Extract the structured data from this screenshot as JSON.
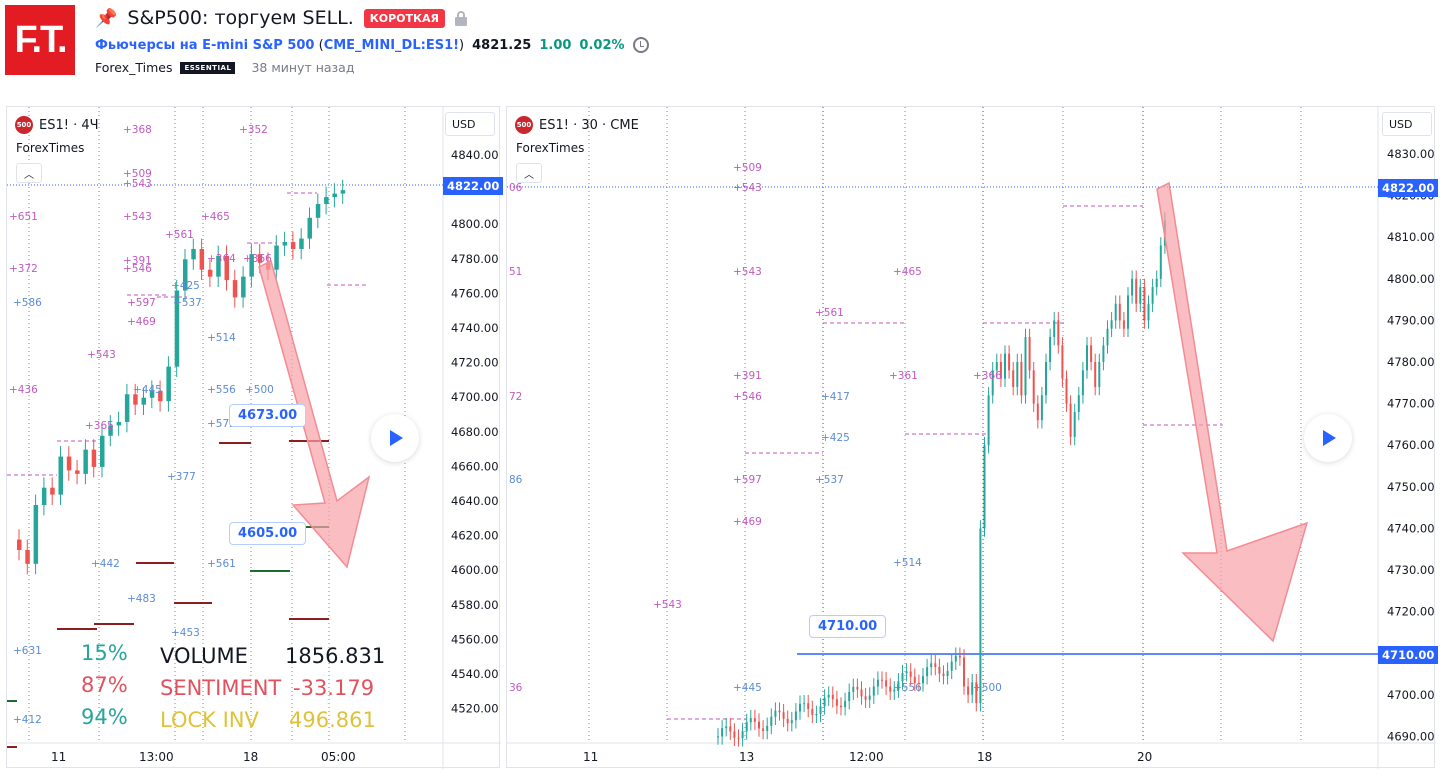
{
  "header": {
    "logo_text": "F.T.",
    "title": "S&P500: торгуем SELL.",
    "badge": "КОРОТКАЯ",
    "symbol_name": "Фьючерсы на E-mini S&P 500",
    "symbol_code": "CME_MINI_DL:ES1!",
    "price": "4821.25",
    "change": "1.00",
    "change_pct": "0.02%",
    "author": "Forex_Times",
    "author_badge": "ESSENTIAL",
    "published": "38 минут назад"
  },
  "colors": {
    "accent": "#2962ff",
    "up": "#089981",
    "down": "#f23645",
    "brand": "#e31b23",
    "annot_pink": "#c159c1",
    "annot_blue": "#5b8bd6"
  },
  "left_chart": {
    "symbol_icon": "500",
    "legend": "ES1! · 4Ч",
    "indicator": "ForexTimes",
    "currency": "USD",
    "current_price": "4822.00",
    "y_ticks": [
      "4840.00",
      "4820.00",
      "4800.00",
      "4780.00",
      "4760.00",
      "4740.00",
      "4720.00",
      "4700.00",
      "4680.00",
      "4660.00",
      "4640.00",
      "4620.00",
      "4600.00",
      "4580.00",
      "4560.00",
      "4540.00",
      "4520.00"
    ],
    "x_ticks": [
      "11",
      "13:00",
      "18",
      "05:00"
    ],
    "callout_1": "4673.00",
    "callout_2": "4605.00",
    "annotations": [
      "+368",
      "+352",
      "+509",
      "+543",
      "+651",
      "+543",
      "+465",
      "+561",
      "+372",
      "+391",
      "+546",
      "+364",
      "+366",
      "+586",
      "+425",
      "+537",
      "+597",
      "+469",
      "+514",
      "+543",
      "+436",
      "+445",
      "+556",
      "+500",
      "+365",
      "+572",
      "+377",
      "+442",
      "+561",
      "+483",
      "+453",
      "+631",
      "+412"
    ],
    "stats": {
      "pct_1": "15%",
      "pct_2": "87%",
      "pct_3": "94%",
      "volume_label": "VOLUME",
      "volume_value": "1856.831",
      "sentiment_label": "SENTIMENT",
      "sentiment_value": "-33.179",
      "lockinv_label": "LOCK INV",
      "lockinv_value": "496.861"
    }
  },
  "right_chart": {
    "symbol_icon": "500",
    "legend": "ES1! · 30 · CME",
    "indicator": "ForexTimes",
    "currency": "USD",
    "current_price": "4822.00",
    "level_price": "4710.00",
    "callout": "4710.00",
    "y_ticks": [
      "4830.00",
      "4820.00",
      "4810.00",
      "4800.00",
      "4790.00",
      "4780.00",
      "4770.00",
      "4760.00",
      "4750.00",
      "4740.00",
      "4730.00",
      "4720.00",
      "4710.00",
      "4700.00",
      "4690.00"
    ],
    "x_ticks": [
      "11",
      "13",
      "12:00",
      "18",
      "20"
    ],
    "annotations": [
      "+509",
      "+543",
      "06",
      "51",
      "+543",
      "+465",
      "+561",
      "+391",
      "+361",
      "+366",
      "72",
      "+546",
      "+417",
      "+425",
      "86",
      "+537",
      "+597",
      "+469",
      "+514",
      "+543",
      "+445",
      "+556",
      "+500",
      "36"
    ]
  }
}
